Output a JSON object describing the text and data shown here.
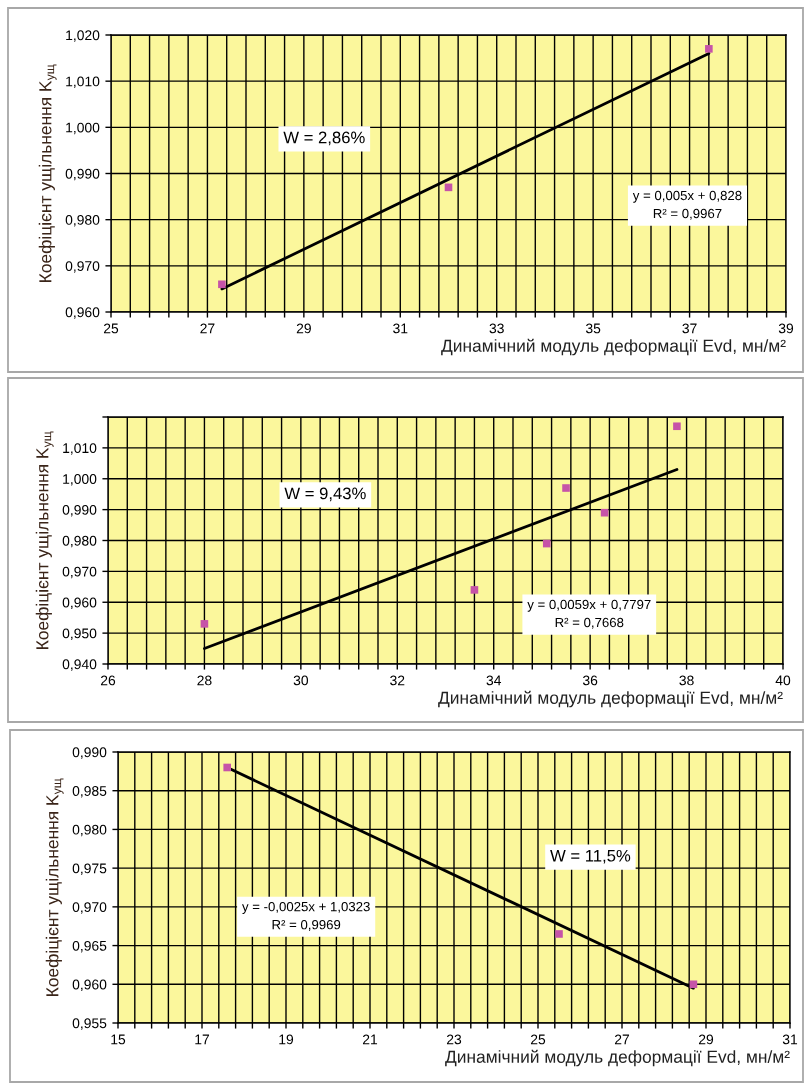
{
  "chart_data": [
    {
      "type": "scatter",
      "xlabel": "Динамічний модуль деформації Evd, мн/м²",
      "ylabel": "Коефіцієнт ущільнення K$_{ущ}$",
      "xlim": [
        25,
        39
      ],
      "ylim": [
        0.96,
        1.02
      ],
      "xticks": [
        25,
        {
          "value": 25.4,
          "label": null
        },
        {
          "value": 25.8,
          "label": null
        },
        {
          "value": 26.2,
          "label": null
        },
        {
          "value": 26.6,
          "label": null
        },
        27,
        {
          "value": 27.4,
          "label": null
        },
        {
          "value": 27.8,
          "label": null
        },
        {
          "value": 28.2,
          "label": null
        },
        {
          "value": 28.6,
          "label": null
        },
        29,
        {
          "value": 29.4,
          "label": null
        },
        {
          "value": 29.8,
          "label": null
        },
        {
          "value": 30.2,
          "label": null
        },
        {
          "value": 30.6,
          "label": null
        },
        31,
        {
          "value": 31.4,
          "label": null
        },
        {
          "value": 31.8,
          "label": null
        },
        {
          "value": 32.2,
          "label": null
        },
        {
          "value": 32.6,
          "label": null
        },
        33,
        {
          "value": 33.4,
          "label": null
        },
        {
          "value": 33.8,
          "label": null
        },
        {
          "value": 34.2,
          "label": null
        },
        {
          "value": 34.6,
          "label": null
        },
        35,
        {
          "value": 35.4,
          "label": null
        },
        {
          "value": 35.8,
          "label": null
        },
        {
          "value": 36.2,
          "label": null
        },
        {
          "value": 36.6,
          "label": null
        },
        37,
        {
          "value": 37.4,
          "label": null
        },
        {
          "value": 37.8,
          "label": null
        },
        {
          "value": 38.2,
          "label": null
        },
        {
          "value": 38.6,
          "label": null
        },
        39
      ],
      "yticks": [
        {
          "value": 0.96,
          "label": "0,960"
        },
        {
          "value": 0.97,
          "label": "0,970"
        },
        {
          "value": 0.98,
          "label": "0,980"
        },
        {
          "value": 0.99,
          "label": "0,990"
        },
        {
          "value": 1.0,
          "label": "1,000"
        },
        {
          "value": 1.01,
          "label": "1,010"
        },
        {
          "value": 1.02,
          "label": "1,020"
        }
      ],
      "grid": true,
      "marker": "square",
      "series": [
        {
          "color": "#c653a8",
          "x": [
            27.3,
            32.0,
            37.4
          ],
          "values": [
            0.966,
            0.987,
            1.017
          ]
        },
        {
          "type": "line",
          "color": "#000000",
          "marker": "none",
          "line_style": "solid",
          "x": [
            27.3,
            37.4
          ],
          "values": [
            0.965,
            1.016
          ]
        }
      ],
      "annotations": [
        "W = 2,86%",
        "y = 0,005x + 0,828\nR² = 0,9967"
      ]
    },
    {
      "type": "scatter",
      "xlabel": "Динамічний модуль деформації Evd, мн/м²",
      "ylabel": "Коефіцієнт ущільнення K$_{ущ}$",
      "xlim": [
        26,
        40
      ],
      "ylim": [
        0.94,
        1.02
      ],
      "xticks": [
        26,
        {
          "value": 26.4,
          "label": null
        },
        {
          "value": 26.8,
          "label": null
        },
        {
          "value": 27.2,
          "label": null
        },
        {
          "value": 27.6,
          "label": null
        },
        28,
        {
          "value": 28.4,
          "label": null
        },
        {
          "value": 28.8,
          "label": null
        },
        {
          "value": 29.2,
          "label": null
        },
        {
          "value": 29.6,
          "label": null
        },
        30,
        {
          "value": 30.4,
          "label": null
        },
        {
          "value": 30.8,
          "label": null
        },
        {
          "value": 31.2,
          "label": null
        },
        {
          "value": 31.6,
          "label": null
        },
        32,
        {
          "value": 32.4,
          "label": null
        },
        {
          "value": 32.8,
          "label": null
        },
        {
          "value": 33.2,
          "label": null
        },
        {
          "value": 33.6,
          "label": null
        },
        34,
        {
          "value": 34.4,
          "label": null
        },
        {
          "value": 34.8,
          "label": null
        },
        {
          "value": 35.2,
          "label": null
        },
        {
          "value": 35.6,
          "label": null
        },
        36,
        {
          "value": 36.4,
          "label": null
        },
        {
          "value": 36.8,
          "label": null
        },
        {
          "value": 37.2,
          "label": null
        },
        {
          "value": 37.6,
          "label": null
        },
        38,
        {
          "value": 38.4,
          "label": null
        },
        {
          "value": 38.8,
          "label": null
        },
        {
          "value": 39.2,
          "label": null
        },
        {
          "value": 39.6,
          "label": null
        },
        40
      ],
      "yticks": [
        {
          "value": 0.94,
          "label": "0,940"
        },
        {
          "value": 0.95,
          "label": "0,950"
        },
        {
          "value": 0.96,
          "label": "0,960"
        },
        {
          "value": 0.97,
          "label": "0,970"
        },
        {
          "value": 0.98,
          "label": "0,980"
        },
        {
          "value": 0.99,
          "label": "0,990"
        },
        {
          "value": 1.0,
          "label": "1,000"
        },
        {
          "value": 1.01,
          "label": "1,010"
        },
        {
          "value": 1.02,
          "label": null
        }
      ],
      "grid": true,
      "marker": "square",
      "series": [
        {
          "color": "#c653a8",
          "x": [
            28.0,
            33.6,
            35.1,
            35.5,
            36.3,
            37.8
          ],
          "values": [
            0.953,
            0.964,
            0.979,
            0.997,
            0.989,
            1.017
          ]
        },
        {
          "type": "line",
          "color": "#000000",
          "marker": "none",
          "line_style": "solid",
          "x": [
            28.0,
            37.8
          ],
          "values": [
            0.945,
            1.003
          ]
        }
      ],
      "annotations": [
        "W = 9,43%",
        "y = 0,0059x + 0,7797\nR² = 0,7668"
      ]
    },
    {
      "type": "scatter",
      "xlabel": "Динамічний модуль деформації Evd, мн/м²",
      "ylabel": "Коефіцієнт ущільнення K$_{ущ}$",
      "xlim": [
        15,
        31
      ],
      "ylim": [
        0.955,
        0.99
      ],
      "xticks": [
        15,
        {
          "value": 15.4,
          "label": null
        },
        {
          "value": 15.8,
          "label": null
        },
        {
          "value": 16.2,
          "label": null
        },
        {
          "value": 16.6,
          "label": null
        },
        17,
        {
          "value": 17.4,
          "label": null
        },
        {
          "value": 17.8,
          "label": null
        },
        {
          "value": 18.2,
          "label": null
        },
        {
          "value": 18.6,
          "label": null
        },
        19,
        {
          "value": 19.4,
          "label": null
        },
        {
          "value": 19.8,
          "label": null
        },
        {
          "value": 20.2,
          "label": null
        },
        {
          "value": 20.6,
          "label": null
        },
        21,
        {
          "value": 21.4,
          "label": null
        },
        {
          "value": 21.8,
          "label": null
        },
        {
          "value": 22.2,
          "label": null
        },
        {
          "value": 22.6,
          "label": null
        },
        23,
        {
          "value": 23.4,
          "label": null
        },
        {
          "value": 23.8,
          "label": null
        },
        {
          "value": 24.2,
          "label": null
        },
        {
          "value": 24.6,
          "label": null
        },
        25,
        {
          "value": 25.4,
          "label": null
        },
        {
          "value": 25.8,
          "label": null
        },
        {
          "value": 26.2,
          "label": null
        },
        {
          "value": 26.6,
          "label": null
        },
        27,
        {
          "value": 27.4,
          "label": null
        },
        {
          "value": 27.8,
          "label": null
        },
        {
          "value": 28.2,
          "label": null
        },
        {
          "value": 28.6,
          "label": null
        },
        29,
        {
          "value": 29.4,
          "label": null
        },
        {
          "value": 29.8,
          "label": null
        },
        {
          "value": 30.2,
          "label": null
        },
        {
          "value": 30.6,
          "label": null
        },
        31
      ],
      "yticks": [
        {
          "value": 0.955,
          "label": "0,955"
        },
        {
          "value": 0.96,
          "label": "0,960"
        },
        {
          "value": 0.965,
          "label": "0,965"
        },
        {
          "value": 0.97,
          "label": "0,970"
        },
        {
          "value": 0.975,
          "label": "0,975"
        },
        {
          "value": 0.98,
          "label": "0,980"
        },
        {
          "value": 0.985,
          "label": "0,985"
        },
        {
          "value": 0.99,
          "label": "0,990"
        }
      ],
      "grid": true,
      "marker": "square",
      "series": [
        {
          "color": "#c653a8",
          "x": [
            17.6,
            25.5,
            28.7
          ],
          "values": [
            0.988,
            0.9665,
            0.96
          ]
        },
        {
          "type": "line",
          "color": "#000000",
          "marker": "none",
          "line_style": "solid",
          "x": [
            17.6,
            28.7
          ],
          "values": [
            0.988,
            0.9595
          ]
        }
      ],
      "annotations": [
        "W = 11,5%",
        "y = -0,0025x + 1,0323\nR² = 0,9969"
      ]
    }
  ]
}
